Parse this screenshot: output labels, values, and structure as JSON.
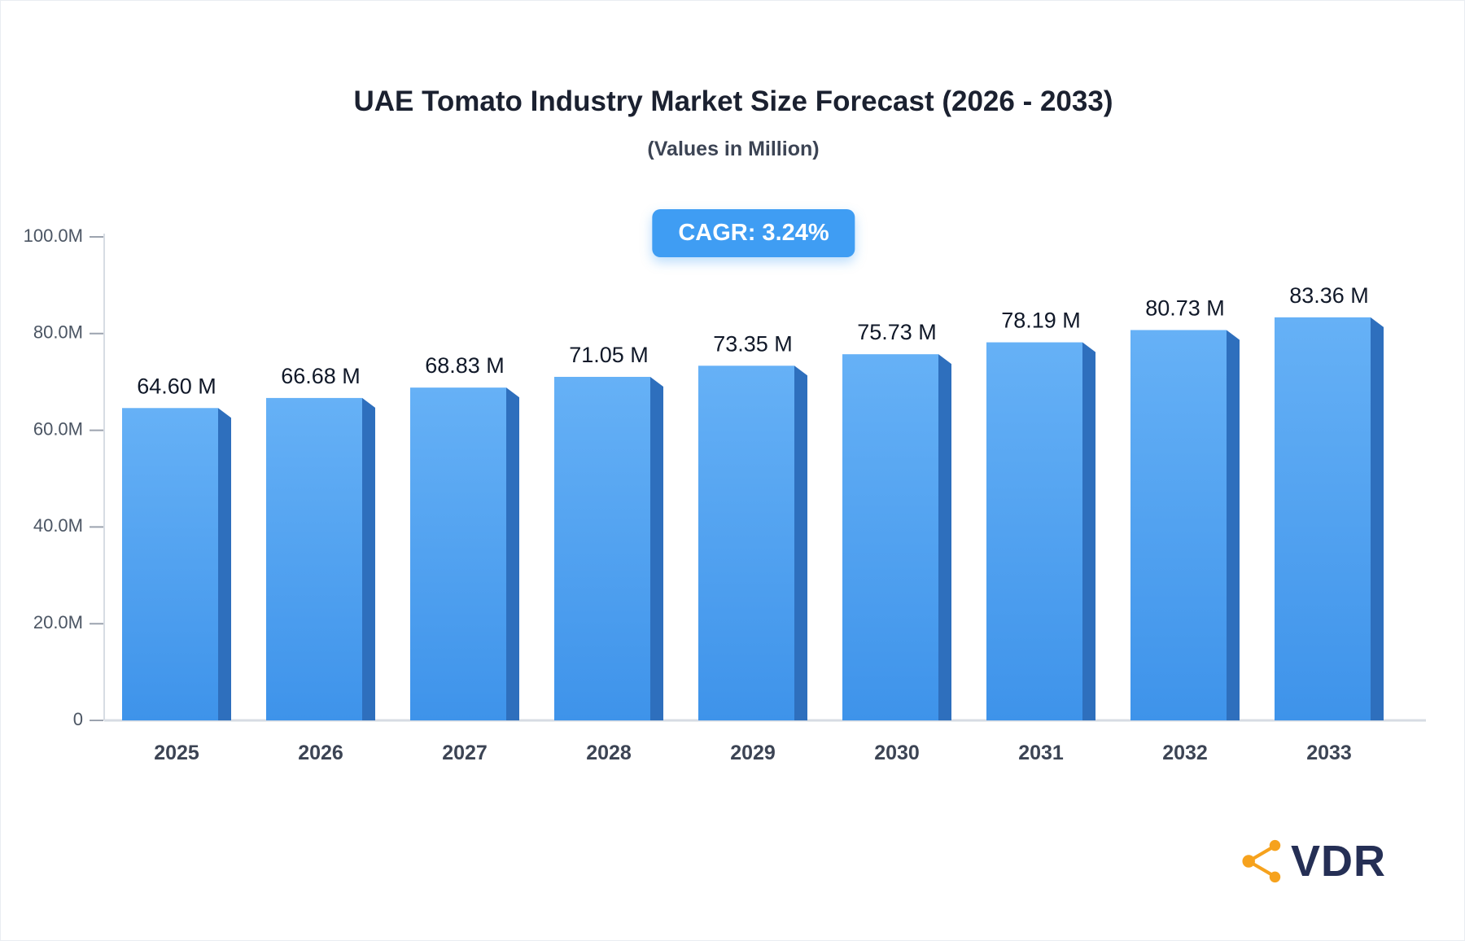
{
  "header": {
    "title": "UAE Tomato Industry Market Size Forecast (2026 - 2033)",
    "subtitle": "(Values in Million)",
    "cagr_label": "CAGR: 3.24%"
  },
  "chart_data": {
    "type": "bar",
    "title": "UAE Tomato Industry Market Size Forecast (2026 - 2033)",
    "subtitle": "(Values in Million)",
    "annotation": "CAGR: 3.24%",
    "categories": [
      "2025",
      "2026",
      "2027",
      "2028",
      "2029",
      "2030",
      "2031",
      "2032",
      "2033"
    ],
    "values": [
      64.6,
      66.68,
      68.83,
      71.05,
      73.35,
      75.73,
      78.19,
      80.73,
      83.36
    ],
    "value_labels": [
      "64.60 M",
      "66.68 M",
      "68.83 M",
      "71.05 M",
      "73.35 M",
      "75.73 M",
      "78.19 M",
      "80.73 M",
      "83.36 M"
    ],
    "xlabel": "",
    "ylabel": "",
    "ylim": [
      0,
      100
    ],
    "yticks": [
      0,
      20,
      40,
      60,
      80,
      100
    ],
    "ytick_labels": [
      "0",
      "20.0M",
      "40.0M",
      "60.0M",
      "80.0M",
      "100.0M"
    ],
    "grid": false,
    "legend": false,
    "bar_color_top": "#66b1f6",
    "bar_color_bottom": "#3e93ea",
    "bar_side_color": "#2e6fbd",
    "axis_color": "#d7dce3",
    "tick_label_color": "#4b5563",
    "value_label_color": "#101828",
    "x_label_color": "#3c4454"
  },
  "badge": {
    "color": "#3f9df3"
  },
  "logo": {
    "text": "VDR",
    "icon": "network-nodes-icon",
    "icon_color": "#f6a21d",
    "text_color": "#252f55"
  }
}
